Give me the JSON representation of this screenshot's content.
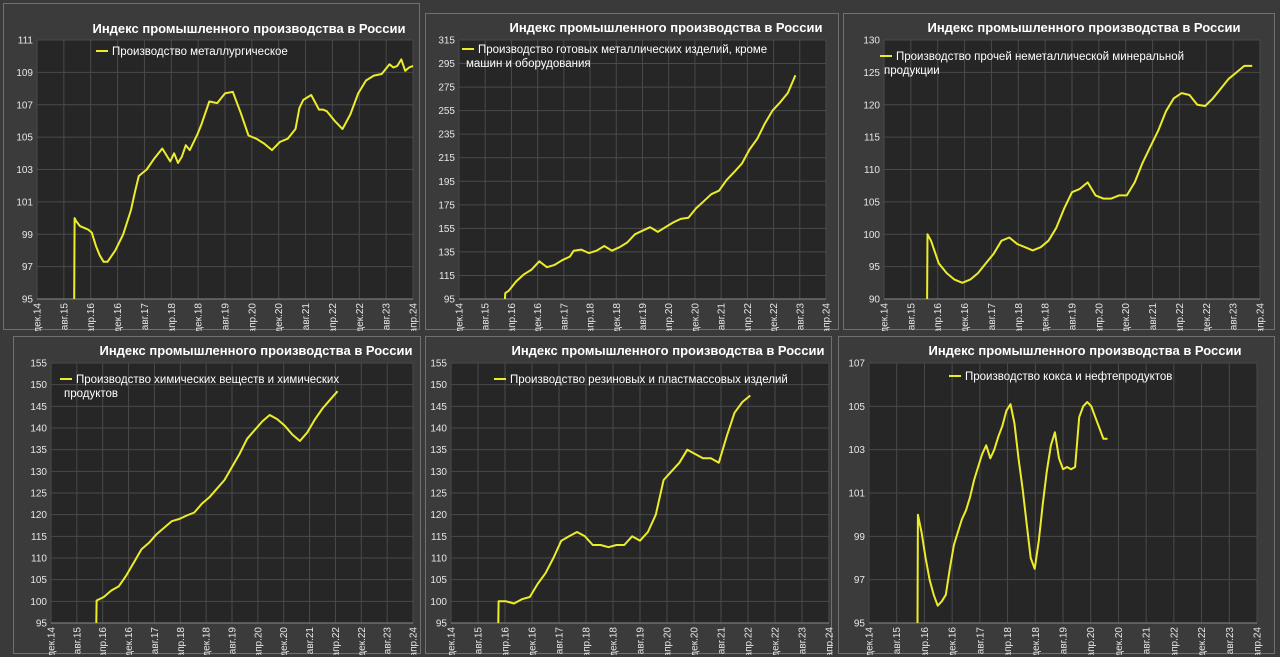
{
  "colors": {
    "line": "#ecec2b",
    "plot_bg": "#262626",
    "panel_bg": "#3b3b3b",
    "grid": "#4a4a4a",
    "text": "#ffffff"
  },
  "chart_data": [
    {
      "type": "line",
      "title": "Индекс промышленного производства в России",
      "series_name": "Производство металлургическое",
      "ylim": [
        95,
        111
      ],
      "yticks": [
        95,
        97,
        99,
        101,
        103,
        105,
        107,
        109,
        111
      ],
      "xticks": [
        "дек.14",
        "авг.15",
        "апр.16",
        "дек.16",
        "авг.17",
        "апр.18",
        "дек.18",
        "авг.19",
        "апр.20",
        "дек.20",
        "авг.21",
        "апр.22",
        "дек.22",
        "авг.23",
        "апр.24"
      ],
      "grid": true,
      "legend": "top-left",
      "x": [
        0,
        9.5,
        9.6,
        10,
        11,
        12,
        13,
        14,
        15,
        16,
        17,
        18,
        20,
        22,
        24,
        25,
        26,
        28,
        30,
        32,
        34,
        35,
        36,
        37,
        38,
        39,
        40,
        41,
        42,
        44,
        46,
        48,
        50,
        52,
        54,
        56,
        58,
        60,
        62,
        64,
        66,
        67,
        68,
        70,
        72,
        73,
        74,
        76,
        78,
        80,
        82,
        84,
        86,
        88,
        90,
        91,
        92,
        93,
        94,
        95,
        96,
        97,
        98,
        99,
        100,
        102,
        104,
        106,
        108,
        109,
        110,
        111,
        112,
        113,
        114
      ],
      "values": [
        null,
        95,
        100,
        99.8,
        99.5,
        99.4,
        99.3,
        99.1,
        98.3,
        97.7,
        97.3,
        97.3,
        98.0,
        99.0,
        100.5,
        101.6,
        102.6,
        103.0,
        103.7,
        104.3,
        103.5,
        104.0,
        103.4,
        103.8,
        104.5,
        104.2,
        104.7,
        105.2,
        105.8,
        107.2,
        107.1,
        107.7,
        107.8,
        106.5,
        105.1,
        104.9,
        104.6,
        104.2,
        104.7,
        104.9,
        105.5,
        106.8,
        107.3,
        107.6,
        106.7,
        106.7,
        106.6,
        106.0,
        105.5,
        106.4,
        107.7,
        108.5,
        108.8,
        108.9,
        109.5,
        109.3,
        109.4,
        109.8,
        109.1,
        109.3,
        109.4,
        null,
        null,
        null,
        null,
        null,
        null,
        null,
        null,
        null,
        null,
        null,
        null,
        null,
        null
      ]
    },
    {
      "type": "line",
      "title": "Индекс промышленного производства в России",
      "series_name": "Производство готовых металлических изделий, кроме машин и оборудования",
      "ylim": [
        95,
        315
      ],
      "yticks": [
        95,
        115,
        135,
        155,
        175,
        195,
        215,
        235,
        255,
        275,
        295,
        315
      ],
      "xticks": [
        "дек.14",
        "авг.15",
        "апр.16",
        "дек.16",
        "авг.17",
        "апр.18",
        "дек.18",
        "авг.19",
        "апр.20",
        "дек.20",
        "авг.21",
        "апр.22",
        "дек.22",
        "авг.23",
        "апр.24"
      ],
      "grid": true,
      "legend": "top-left",
      "x": [
        0,
        12,
        12.1,
        13,
        15,
        17,
        19,
        21,
        23,
        25,
        27,
        29,
        30,
        32,
        34,
        36,
        38,
        40,
        42,
        44,
        46,
        48,
        50,
        52,
        54,
        56,
        58,
        60,
        62,
        64,
        66,
        68,
        70,
        72,
        74,
        76,
        78,
        80,
        82,
        84,
        86,
        88,
        90,
        92,
        94,
        96,
        98,
        100,
        101,
        102,
        103,
        104,
        105,
        106,
        107,
        108,
        109,
        110,
        111,
        112,
        113,
        114
      ],
      "values": [
        null,
        95,
        100,
        102,
        110,
        116,
        120,
        127,
        122,
        124,
        128,
        131,
        136,
        137,
        134,
        136,
        140,
        136,
        139,
        143,
        150,
        153,
        156,
        152,
        156,
        160,
        163,
        164,
        172,
        178,
        184,
        187,
        196,
        203,
        210,
        222,
        231,
        244,
        255,
        262,
        270,
        285,
        null,
        null,
        null,
        null,
        null,
        null,
        null,
        null,
        null,
        null,
        null,
        null,
        null,
        null,
        null,
        null,
        null,
        null,
        null,
        null
      ]
    },
    {
      "type": "line",
      "title": "Индекс промышленного производства в России",
      "series_name": "Производство прочей неметаллической минеральной продукции",
      "ylim": [
        90,
        130
      ],
      "yticks": [
        90,
        95,
        100,
        105,
        110,
        115,
        120,
        125,
        130
      ],
      "xticks": [
        "дек.14",
        "авг.15",
        "апр.16",
        "дек.16",
        "авг.17",
        "апр.18",
        "дек.18",
        "авг.19",
        "апр.20",
        "дек.20",
        "авг.21",
        "апр.22",
        "дек.22",
        "авг.23",
        "апр.24"
      ],
      "grid": true,
      "legend": "top-left",
      "x": [
        0,
        11,
        11.1,
        12,
        14,
        16,
        18,
        20,
        22,
        24,
        26,
        28,
        30,
        32,
        34,
        36,
        38,
        40,
        42,
        44,
        46,
        48,
        50,
        52,
        54,
        56,
        58,
        60,
        62,
        64,
        66,
        68,
        70,
        72,
        74,
        76,
        78,
        80,
        82,
        84,
        86,
        88,
        90,
        92,
        94,
        96,
        98,
        100,
        102,
        104,
        106,
        108,
        110,
        112,
        113,
        114
      ],
      "values": [
        null,
        90,
        100,
        99,
        95.5,
        94,
        93,
        92.5,
        93,
        94,
        95.5,
        97,
        99,
        99.5,
        98.5,
        98,
        97.5,
        98,
        99,
        101,
        104,
        106.5,
        107,
        108,
        106,
        105.5,
        105.5,
        106,
        106,
        108,
        111,
        113.5,
        116,
        119,
        121,
        121.8,
        121.5,
        120,
        119.8,
        121,
        122.5,
        124,
        125,
        126,
        126,
        null,
        null,
        null,
        null,
        null,
        null,
        null,
        null,
        null,
        null,
        null
      ]
    },
    {
      "type": "line",
      "title": "Индекс промышленного производства в России",
      "series_name": "Производство химических веществ и химических продуктов",
      "ylim": [
        95,
        155
      ],
      "yticks": [
        95,
        100,
        105,
        110,
        115,
        120,
        125,
        130,
        135,
        140,
        145,
        150,
        155
      ],
      "xticks": [
        "дек.14",
        "авг.15",
        "апр.16",
        "дек.16",
        "авг.17",
        "апр.18",
        "дек.18",
        "авг.19",
        "апр.20",
        "дек.20",
        "авг.21",
        "апр.22",
        "дек.22",
        "авг.23",
        "апр.24"
      ],
      "grid": true,
      "legend": "top-left",
      "x": [
        0,
        12,
        12.1,
        14,
        16,
        18,
        20,
        22,
        24,
        26,
        28,
        30,
        32,
        34,
        36,
        38,
        40,
        42,
        44,
        46,
        48,
        50,
        52,
        54,
        56,
        58,
        60,
        62,
        64,
        66,
        68,
        70,
        72,
        74,
        76,
        78,
        80,
        82,
        84,
        86,
        88,
        90
      ],
      "values": [
        null,
        95,
        100.2,
        101,
        102.5,
        103.5,
        106,
        109,
        112,
        113.5,
        115.5,
        117,
        118.5,
        119,
        119.8,
        120.5,
        122.5,
        124,
        126,
        128,
        131,
        134,
        137.5,
        139.5,
        141.5,
        143,
        142,
        140.5,
        138.5,
        137,
        139,
        142,
        144.5,
        146.5,
        148.5,
        null,
        null,
        null,
        null,
        null,
        null,
        null
      ]
    },
    {
      "type": "line",
      "title": "Индекс промышленного производства в России",
      "series_name": "Производство резиновых и пластмассовых изделий",
      "ylim": [
        95,
        155
      ],
      "yticks": [
        95,
        100,
        105,
        110,
        115,
        120,
        125,
        130,
        135,
        140,
        145,
        150,
        155
      ],
      "xticks": [
        "дек.14",
        "авг.15",
        "апр.16",
        "дек.16",
        "авг.17",
        "апр.18",
        "дек.18",
        "авг.19",
        "апр.20",
        "дек.20",
        "авг.21",
        "апр.22",
        "дек.22",
        "авг.23",
        "апр.24"
      ],
      "grid": true,
      "legend": "top-left",
      "x": [
        0,
        12,
        12.1,
        14,
        16,
        18,
        20,
        22,
        24,
        26,
        28,
        30,
        32,
        34,
        36,
        38,
        40,
        42,
        44,
        46,
        48,
        50,
        52,
        54,
        56,
        58,
        60,
        62,
        64,
        66,
        68,
        70,
        72,
        74,
        76,
        78,
        80,
        82,
        84,
        86,
        88,
        90
      ],
      "values": [
        null,
        95,
        100,
        100,
        99.5,
        100.5,
        101,
        104,
        106.5,
        110,
        114,
        115,
        116,
        115,
        113,
        113,
        112.5,
        113,
        113,
        115,
        114,
        116,
        120,
        128,
        130,
        132,
        135,
        134,
        133,
        133,
        132,
        138,
        143.5,
        146,
        147.5,
        null,
        null,
        null,
        null,
        null,
        null,
        null
      ]
    },
    {
      "type": "line",
      "title": "Индекс промышленного производства в России",
      "series_name": "Производство кокса и нефтепродуктов",
      "ylim": [
        95,
        107
      ],
      "yticks": [
        95,
        97,
        99,
        101,
        103,
        105,
        107
      ],
      "xticks": [
        "дек.14",
        "авг.15",
        "апр.16",
        "дек.16",
        "авг.17",
        "апр.18",
        "дек.18",
        "авг.19",
        "апр.20",
        "дек.20",
        "авг.21",
        "апр.22",
        "дек.22",
        "авг.23",
        "апр.24"
      ],
      "grid": true,
      "legend": "top-left",
      "x": [
        0,
        12,
        12.1,
        13,
        14,
        15,
        16,
        17,
        18,
        19,
        20,
        21,
        22,
        23,
        24,
        25,
        26,
        27,
        28,
        29,
        30,
        31,
        32,
        33,
        34,
        35,
        36,
        37,
        38,
        39,
        40,
        41,
        42,
        43,
        44,
        45,
        46,
        47,
        48,
        49,
        50,
        51,
        52,
        53,
        54,
        55,
        56,
        57,
        58,
        59,
        60,
        61,
        62,
        63,
        64,
        65,
        66,
        67,
        68,
        69,
        70,
        71,
        72,
        73,
        74,
        75,
        76,
        77,
        78,
        79,
        80,
        81,
        82,
        83,
        84,
        85,
        86,
        87,
        88,
        89,
        90,
        91,
        92,
        93,
        94
      ],
      "values": [
        null,
        95,
        100,
        99.2,
        98,
        97,
        96.3,
        95.8,
        96.0,
        96.3,
        97.5,
        98.6,
        99.2,
        99.8,
        100.2,
        100.8,
        101.6,
        102.2,
        102.8,
        103.2,
        102.6,
        103.0,
        103.6,
        104.1,
        104.8,
        105.1,
        104.2,
        102.6,
        101.2,
        99.6,
        98.0,
        97.5,
        98.8,
        100.5,
        102.0,
        103.2,
        103.8,
        102.6,
        102.1,
        102.2,
        102.1,
        102.2,
        104.5,
        105.0,
        105.2,
        105.0,
        104.5,
        104.0,
        103.5,
        103.5,
        null,
        null,
        null,
        null,
        null,
        null,
        null,
        null,
        null,
        null,
        null,
        null,
        null,
        null,
        null,
        null,
        null,
        null,
        null,
        null,
        null,
        null,
        null,
        null,
        null,
        null,
        null,
        null,
        null,
        null,
        null,
        null,
        null,
        null,
        null
      ]
    }
  ]
}
